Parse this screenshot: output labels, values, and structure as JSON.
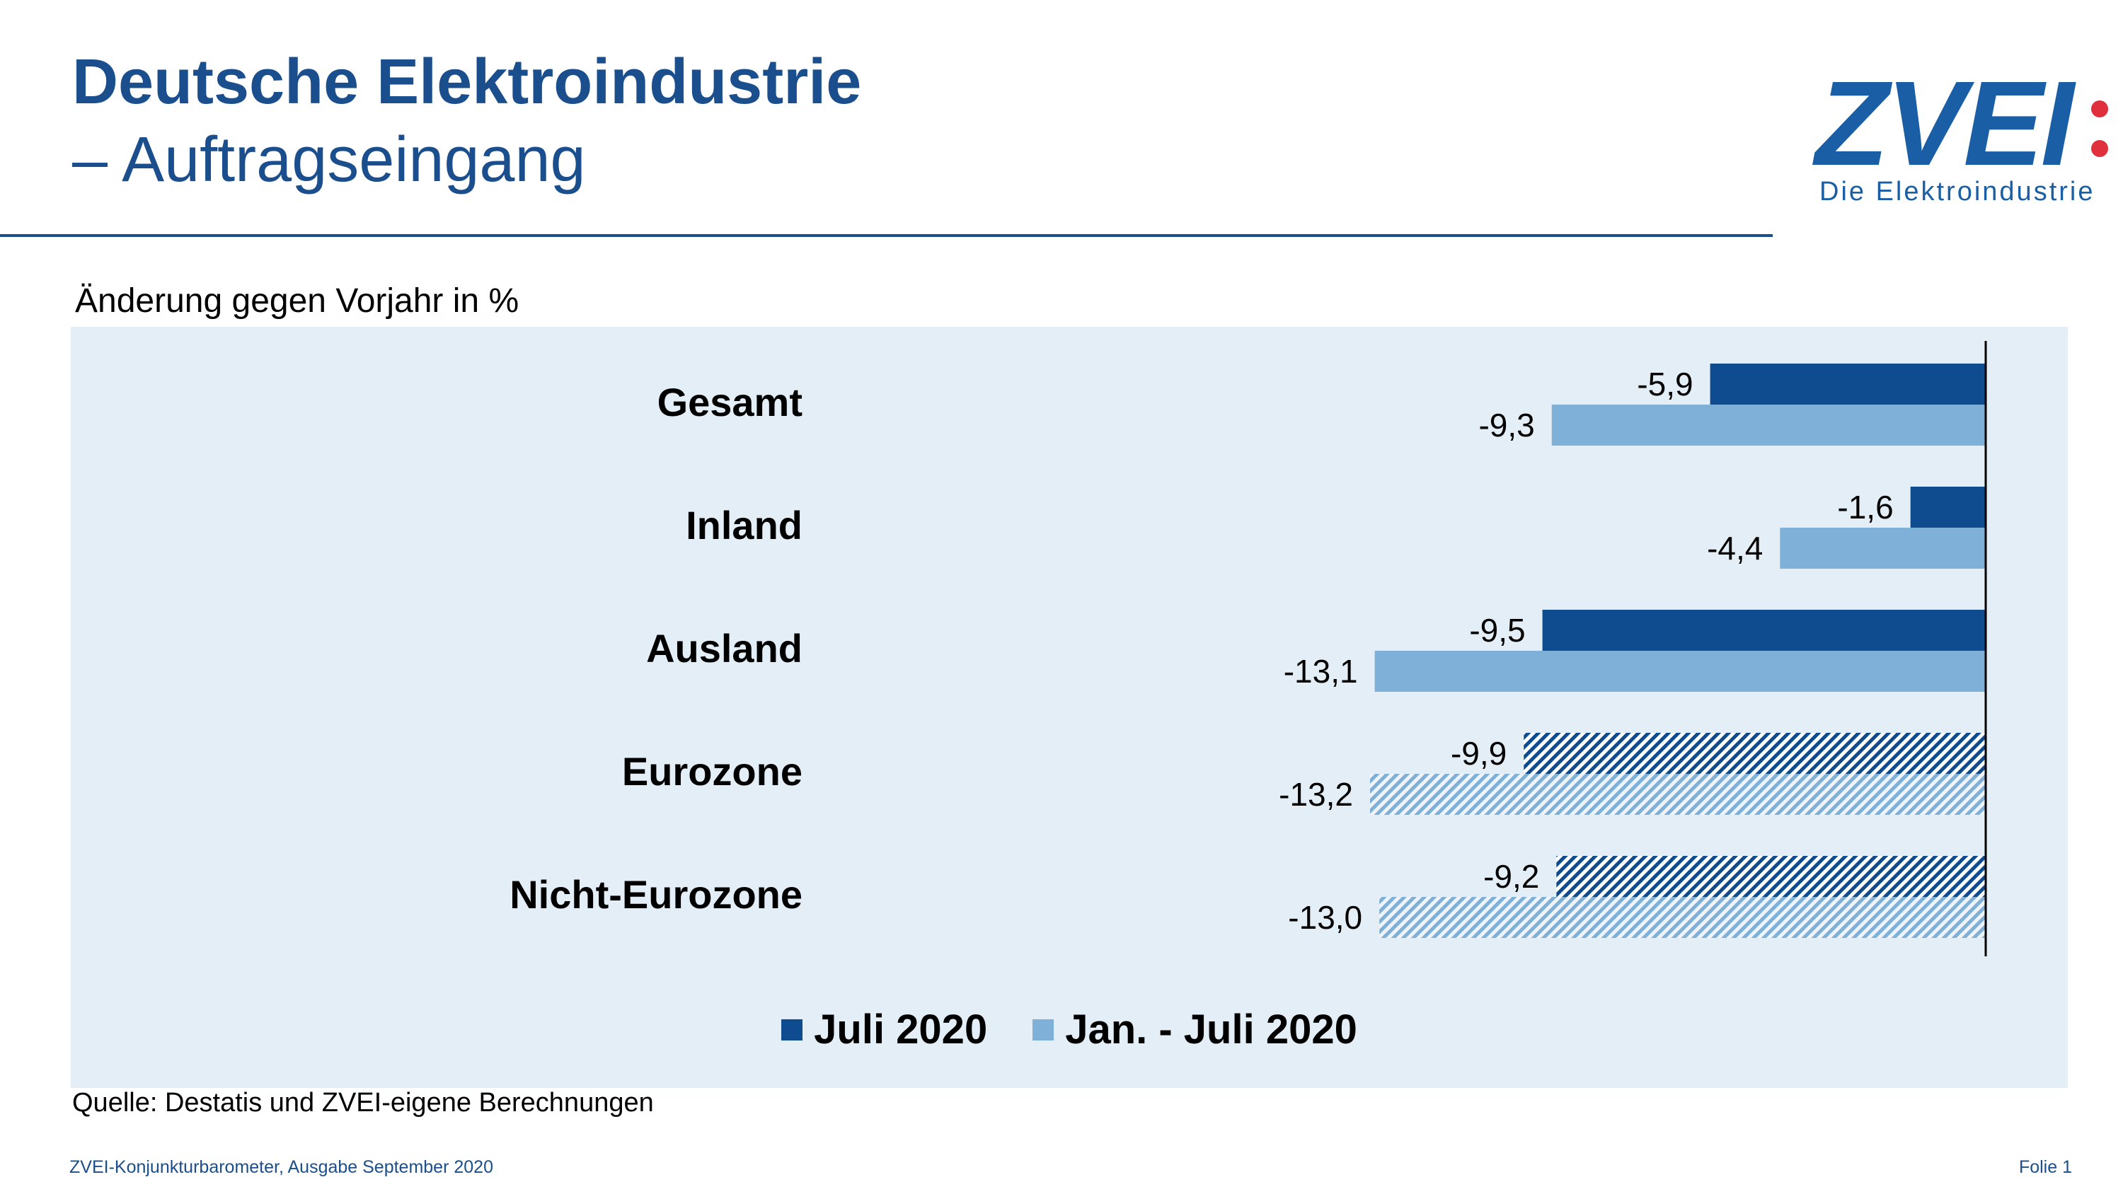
{
  "header": {
    "title": "Deutsche Elektroindustrie",
    "subtitle": "– Auftragseingang"
  },
  "logo": {
    "wordmark": "ZVEI",
    "tagline": "Die Elektroindustrie",
    "dot_color": "#e0303e"
  },
  "colors": {
    "series_dark": "#0f4c8f",
    "series_light": "#7eb0d8",
    "panel": "#e3eef6",
    "title": "#1a4e8c"
  },
  "chart_data": {
    "type": "bar",
    "orientation": "horizontal",
    "ylabel": "Änderung gegen Vorjahr in %",
    "categories": [
      "Gesamt",
      "Inland",
      "Ausland",
      "Eurozone",
      "Nicht-Eurozone"
    ],
    "series": [
      {
        "name": "Juli 2020",
        "values": [
          -5.9,
          -1.6,
          -9.5,
          -9.9,
          -9.2
        ],
        "labels": [
          "-5,9",
          "-1,6",
          "-9,5",
          "-9,9",
          "-9,2"
        ],
        "hatched": [
          false,
          false,
          false,
          true,
          true
        ]
      },
      {
        "name": "Jan. - Juli 2020",
        "values": [
          -9.3,
          -4.4,
          -13.1,
          -13.2,
          -13.0
        ],
        "labels": [
          "-9,3",
          "-4,4",
          "-13,1",
          "-13,2",
          "-13,0"
        ],
        "hatched": [
          false,
          false,
          false,
          true,
          true
        ]
      }
    ],
    "xlim": [
      -13.2,
      0
    ],
    "legend_position": "bottom-center",
    "grid": false
  },
  "source": "Quelle: Destatis und ZVEI-eigene Berechnungen",
  "footer": {
    "left": "ZVEI-Konjunkturbarometer, Ausgabe September 2020",
    "right": "Folie 1"
  }
}
